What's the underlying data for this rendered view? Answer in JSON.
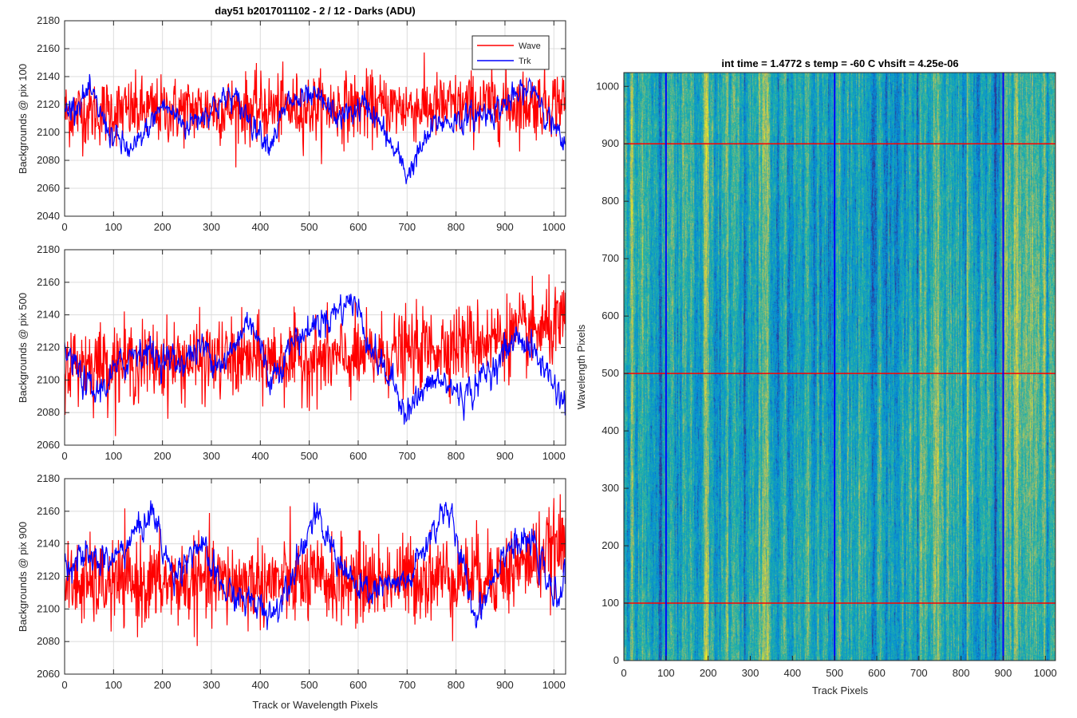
{
  "chart_data": [
    {
      "type": "line",
      "title": "day51 b2017011102 - 2 / 12 - Darks (ADU)",
      "xlabel": "",
      "ylabel": "Backgrounds @ pix 100",
      "xlim": [
        0,
        1024
      ],
      "ylim": [
        2040,
        2180
      ],
      "xticks": [
        0,
        100,
        200,
        300,
        400,
        500,
        600,
        700,
        800,
        900,
        1000
      ],
      "yticks": [
        2040,
        2060,
        2080,
        2100,
        2120,
        2140,
        2160,
        2180
      ],
      "grid": true,
      "legend": {
        "placement": "top-right"
      },
      "series": [
        {
          "name": "Wave",
          "color": "#ff0000",
          "mean": 2116,
          "noise": 12,
          "drift": [
            [
              0,
              2114
            ],
            [
              256,
              2116
            ],
            [
              512,
              2118
            ],
            [
              768,
              2118
            ],
            [
              1024,
              2122
            ]
          ]
        },
        {
          "name": "Trk",
          "color": "#0000ff",
          "mean": 2110,
          "noise": 4,
          "drift": [
            [
              0,
              2115
            ],
            [
              50,
              2128
            ],
            [
              100,
              2096
            ],
            [
              140,
              2085
            ],
            [
              200,
              2120
            ],
            [
              250,
              2105
            ],
            [
              300,
              2118
            ],
            [
              340,
              2126
            ],
            [
              420,
              2093
            ],
            [
              460,
              2122
            ],
            [
              520,
              2123
            ],
            [
              560,
              2110
            ],
            [
              620,
              2120
            ],
            [
              700,
              2070
            ],
            [
              760,
              2107
            ],
            [
              830,
              2110
            ],
            [
              900,
              2120
            ],
            [
              960,
              2133
            ],
            [
              1024,
              2085
            ]
          ]
        }
      ]
    },
    {
      "type": "line",
      "title": "",
      "xlabel": "",
      "ylabel": "Backgrounds @ pix 500",
      "xlim": [
        0,
        1024
      ],
      "ylim": [
        2060,
        2180
      ],
      "xticks": [
        0,
        100,
        200,
        300,
        400,
        500,
        600,
        700,
        800,
        900,
        1000
      ],
      "yticks": [
        2060,
        2080,
        2100,
        2120,
        2140,
        2160,
        2180
      ],
      "grid": true,
      "series": [
        {
          "name": "Wave",
          "color": "#ff0000",
          "mean": 2112,
          "noise": 12,
          "drift": [
            [
              0,
              2110
            ],
            [
              300,
              2112
            ],
            [
              600,
              2113
            ],
            [
              800,
              2122
            ],
            [
              1024,
              2133
            ]
          ]
        },
        {
          "name": "Trk",
          "color": "#0000ff",
          "mean": 2108,
          "noise": 4,
          "drift": [
            [
              0,
              2118
            ],
            [
              60,
              2090
            ],
            [
              150,
              2120
            ],
            [
              230,
              2110
            ],
            [
              280,
              2120
            ],
            [
              330,
              2110
            ],
            [
              380,
              2140
            ],
            [
              420,
              2100
            ],
            [
              470,
              2125
            ],
            [
              590,
              2150
            ],
            [
              630,
              2118
            ],
            [
              700,
              2082
            ],
            [
              760,
              2100
            ],
            [
              820,
              2090
            ],
            [
              880,
              2110
            ],
            [
              930,
              2128
            ],
            [
              980,
              2108
            ],
            [
              1024,
              2085
            ]
          ]
        }
      ]
    },
    {
      "type": "line",
      "title": "",
      "xlabel": "Track or Wavelength Pixels",
      "ylabel": "Backgrounds @ pix 900",
      "xlim": [
        0,
        1024
      ],
      "ylim": [
        2060,
        2180
      ],
      "xticks": [
        0,
        100,
        200,
        300,
        400,
        500,
        600,
        700,
        800,
        900,
        1000
      ],
      "yticks": [
        2060,
        2080,
        2100,
        2120,
        2140,
        2160,
        2180
      ],
      "grid": true,
      "series": [
        {
          "name": "Wave",
          "color": "#ff0000",
          "mean": 2118,
          "noise": 13,
          "drift": [
            [
              0,
              2115
            ],
            [
              300,
              2116
            ],
            [
              600,
              2117
            ],
            [
              900,
              2122
            ],
            [
              1024,
              2140
            ]
          ]
        },
        {
          "name": "Trk",
          "color": "#0000ff",
          "mean": 2123,
          "noise": 4,
          "drift": [
            [
              0,
              2130
            ],
            [
              100,
              2130
            ],
            [
              180,
              2160
            ],
            [
              220,
              2120
            ],
            [
              270,
              2140
            ],
            [
              330,
              2110
            ],
            [
              430,
              2098
            ],
            [
              510,
              2157
            ],
            [
              600,
              2110
            ],
            [
              700,
              2115
            ],
            [
              780,
              2165
            ],
            [
              840,
              2095
            ],
            [
              900,
              2138
            ],
            [
              960,
              2140
            ],
            [
              1000,
              2105
            ],
            [
              1024,
              2120
            ]
          ]
        }
      ]
    },
    {
      "type": "heatmap",
      "title": "int time = 1.4772 s    temp = -60 C    vhsift = 4.25e-06",
      "xlabel": "Track Pixels",
      "ylabel": "Wavelength Pixels",
      "xlim": [
        0,
        1024
      ],
      "ylim": [
        0,
        1024
      ],
      "xticks": [
        0,
        100,
        200,
        300,
        400,
        500,
        600,
        700,
        800,
        900,
        1000
      ],
      "yticks": [
        0,
        100,
        200,
        300,
        400,
        500,
        600,
        700,
        800,
        900,
        1000
      ],
      "colormap": "parula",
      "row_markers": {
        "values": [
          100,
          500,
          900
        ],
        "color": "#ff0000"
      },
      "column_markers": {
        "values": [
          100,
          500,
          900
        ],
        "color": "#0000ff"
      }
    }
  ]
}
